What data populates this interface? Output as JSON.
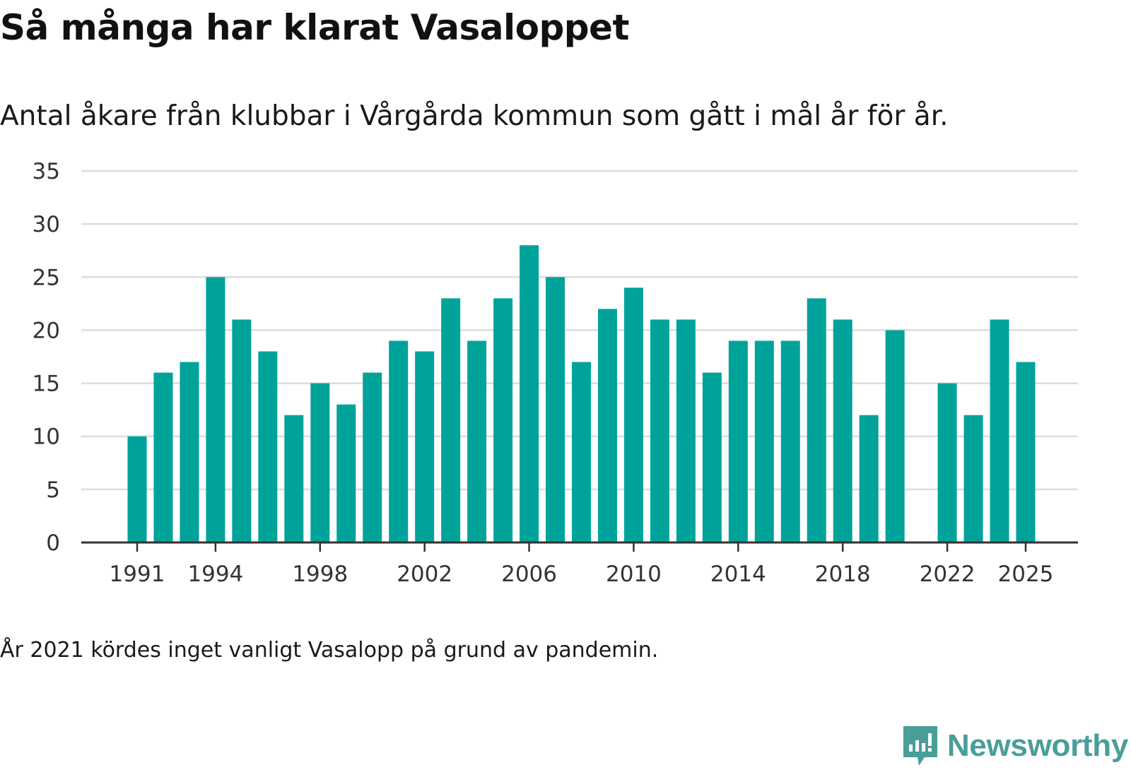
{
  "title": "Så många har klarat Vasaloppet",
  "subtitle": "Antal åkare från klubbar i Vårgårda kommun som gått i mål år för år.",
  "note": "År 2021 kördes inget vanligt Vasalopp på grund av pandemin.",
  "brand": {
    "name": "Newsworthy",
    "icon": "newsworthy-logo-icon",
    "color": "#4a9e9a"
  },
  "colors": {
    "bar": "#00a39a",
    "grid": "#dcdcdc",
    "axis": "#333333"
  },
  "chart_data": {
    "type": "bar",
    "title": "Så många har klarat Vasaloppet",
    "xlabel": "",
    "ylabel": "",
    "ylim": [
      0,
      35
    ],
    "yticks": [
      0,
      5,
      10,
      15,
      20,
      25,
      30,
      35
    ],
    "xticks": [
      1991,
      1994,
      1998,
      2002,
      2006,
      2010,
      2014,
      2018,
      2022,
      2025
    ],
    "grid": true,
    "categories": [
      1991,
      1992,
      1993,
      1994,
      1995,
      1996,
      1997,
      1998,
      1999,
      2000,
      2001,
      2002,
      2003,
      2004,
      2005,
      2006,
      2007,
      2008,
      2009,
      2010,
      2011,
      2012,
      2013,
      2014,
      2015,
      2016,
      2017,
      2018,
      2019,
      2020,
      2021,
      2022,
      2023,
      2024,
      2025
    ],
    "values": [
      10,
      16,
      17,
      25,
      21,
      18,
      12,
      15,
      13,
      16,
      19,
      18,
      23,
      19,
      23,
      28,
      25,
      17,
      22,
      24,
      21,
      21,
      16,
      19,
      19,
      19,
      23,
      21,
      12,
      20,
      null,
      15,
      12,
      21,
      17
    ]
  }
}
